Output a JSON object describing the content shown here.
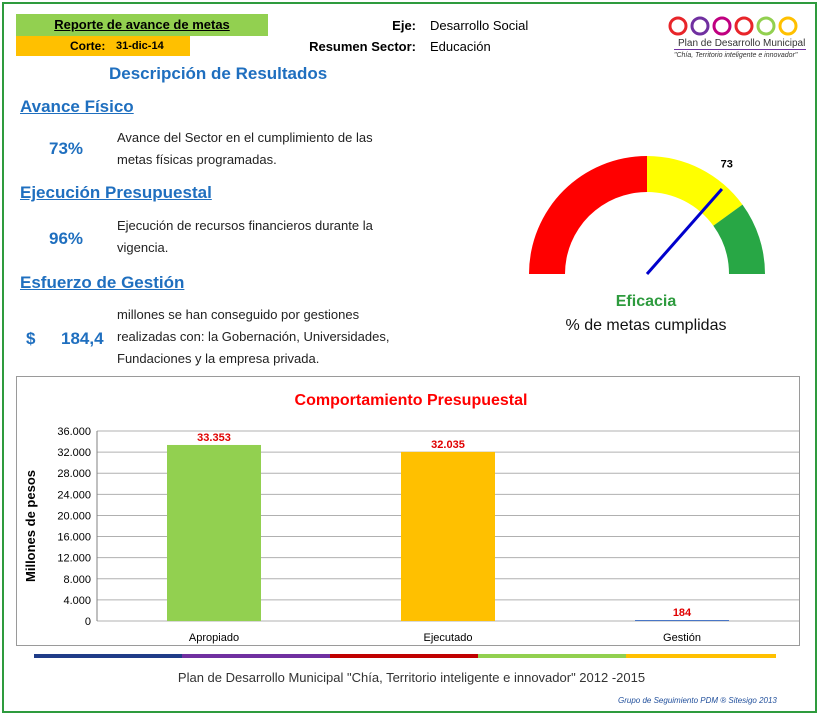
{
  "header": {
    "report_title": "Reporte de avance de metas",
    "corte_label": "Corte:",
    "corte_value": "31-dic-14",
    "eje_label": "Eje:",
    "eje_value": "Desarrollo Social",
    "sector_label": "Resumen Sector:",
    "sector_value": "Educación"
  },
  "logo": {
    "title": "Plan de Desarrollo Municipal",
    "subtitle": "\"Chía, Territorio inteligente e innovador\""
  },
  "results_title": "Descripción de Resultados",
  "avance": {
    "title": "Avance Físico",
    "value": "73%",
    "desc": "Avance del Sector en el cumplimiento de las metas físicas programadas."
  },
  "ejecucion": {
    "title": "Ejecución Presupuestal",
    "value": "96%",
    "desc": "Ejecución de recursos financieros durante la vigencia."
  },
  "esfuerzo": {
    "title": "Esfuerzo de Gestión",
    "currency": "$",
    "value": "184,4",
    "desc": "millones se han conseguido por gestiones realizadas con: la Gobernación, Universidades, Fundaciones y la empresa privada."
  },
  "gauge": {
    "value": 73,
    "value_label": "73",
    "label": "Eficacia",
    "sublabel": "% de metas cumplidas",
    "colors": {
      "red": "#ff0000",
      "yellow": "#ffff00",
      "green": "#28a745",
      "needle": "#0000cc"
    }
  },
  "chart_data": {
    "type": "bar",
    "title": "Comportamiento Presupuestal",
    "ylabel": "Millones de pesos",
    "xlabel": "",
    "categories": [
      "Apropiado",
      "Ejecutado",
      "Gestión"
    ],
    "values": [
      33353,
      32035,
      184
    ],
    "value_labels": [
      "33.353",
      "32.035",
      "184"
    ],
    "bar_colors": [
      "#92d050",
      "#ffc000",
      "#4472c4"
    ],
    "ylim": [
      0,
      36000
    ],
    "yticks": [
      "0",
      "4.000",
      "8.000",
      "12.000",
      "16.000",
      "20.000",
      "24.000",
      "28.000",
      "32.000",
      "36.000"
    ],
    "grid": true
  },
  "footer": {
    "text": "Plan de Desarrollo Municipal  \"Chía, Territorio inteligente e innovador\" 2012 -2015",
    "credit": "Grupo de Seguimiento PDM  ® Sitesigo 2013"
  }
}
